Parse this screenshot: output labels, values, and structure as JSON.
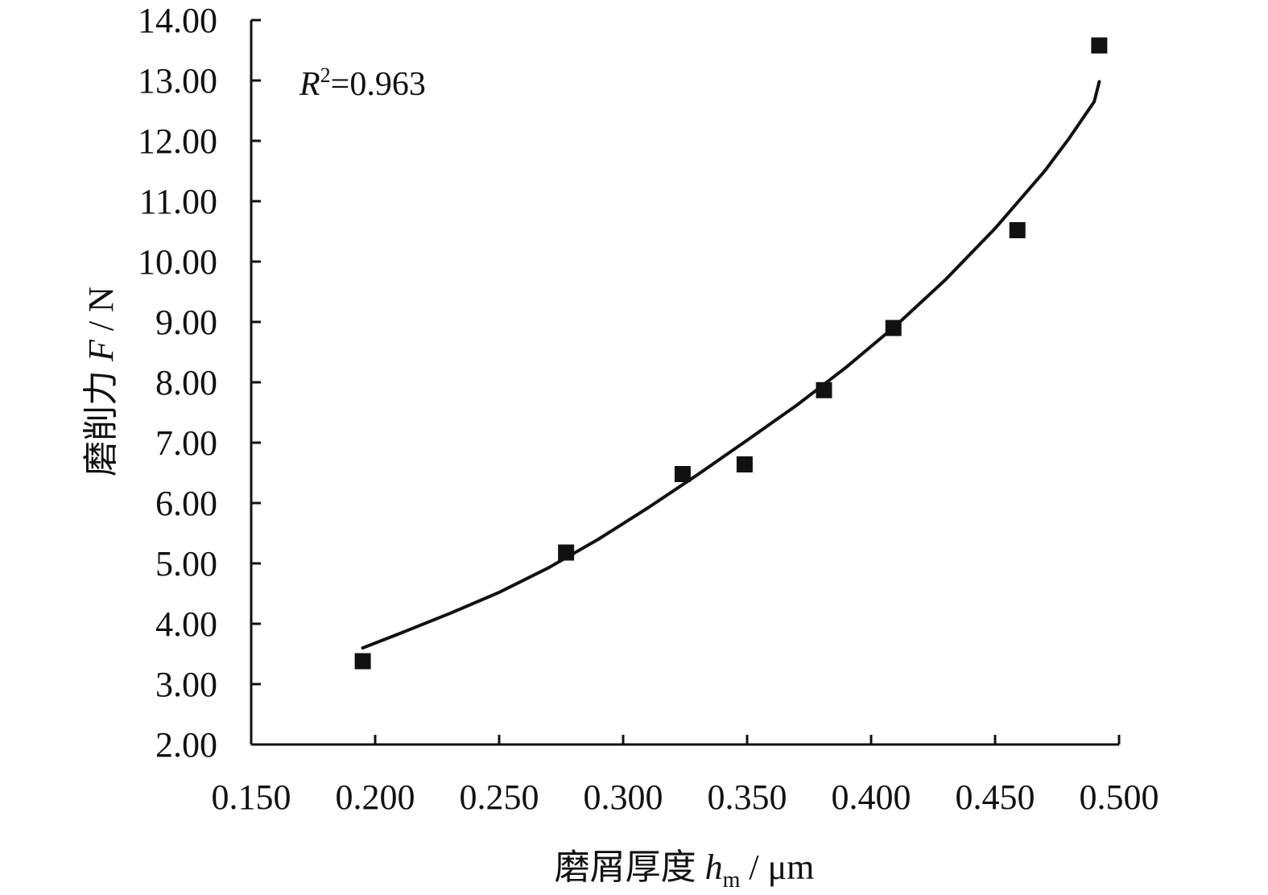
{
  "chart_data": {
    "type": "scatter",
    "xlabel_main": "磨屑厚度 ",
    "xlabel_var": "h",
    "xlabel_sub": "m",
    "xlabel_unit": " / μm",
    "ylabel_main": "磨削力 ",
    "ylabel_var": "F",
    "ylabel_unit": " / N",
    "annotation": {
      "var": "R",
      "sup": "2",
      "text": "=0.963"
    },
    "xlim": [
      0.15,
      0.5
    ],
    "ylim": [
      2.0,
      14.0
    ],
    "x_ticks": [
      0.15,
      0.2,
      0.25,
      0.3,
      0.35,
      0.4,
      0.45,
      0.5
    ],
    "x_tick_labels": [
      "0.150",
      "0.200",
      "0.250",
      "0.300",
      "0.350",
      "0.400",
      "0.450",
      "0.500"
    ],
    "y_ticks": [
      2,
      3,
      4,
      5,
      6,
      7,
      8,
      9,
      10,
      11,
      12,
      13,
      14
    ],
    "y_tick_labels": [
      "2.00",
      "3.00",
      "4.00",
      "5.00",
      "6.00",
      "7.00",
      "8.00",
      "9.00",
      "10.00",
      "11.00",
      "12.00",
      "13.00",
      "14.00"
    ],
    "points": [
      {
        "x": 0.195,
        "y": 3.38
      },
      {
        "x": 0.277,
        "y": 5.18
      },
      {
        "x": 0.324,
        "y": 6.48
      },
      {
        "x": 0.349,
        "y": 6.64
      },
      {
        "x": 0.381,
        "y": 7.87
      },
      {
        "x": 0.409,
        "y": 8.9
      },
      {
        "x": 0.459,
        "y": 10.52
      },
      {
        "x": 0.492,
        "y": 13.58
      }
    ],
    "fit_curve": [
      {
        "x": 0.195,
        "y": 3.6
      },
      {
        "x": 0.21,
        "y": 3.84
      },
      {
        "x": 0.23,
        "y": 4.17
      },
      {
        "x": 0.25,
        "y": 4.52
      },
      {
        "x": 0.27,
        "y": 4.93
      },
      {
        "x": 0.29,
        "y": 5.4
      },
      {
        "x": 0.31,
        "y": 5.92
      },
      {
        "x": 0.33,
        "y": 6.47
      },
      {
        "x": 0.35,
        "y": 7.04
      },
      {
        "x": 0.37,
        "y": 7.62
      },
      {
        "x": 0.39,
        "y": 8.25
      },
      {
        "x": 0.41,
        "y": 8.94
      },
      {
        "x": 0.43,
        "y": 9.7
      },
      {
        "x": 0.45,
        "y": 10.55
      },
      {
        "x": 0.47,
        "y": 11.5
      },
      {
        "x": 0.48,
        "y": 12.05
      },
      {
        "x": 0.49,
        "y": 12.65
      },
      {
        "x": 0.492,
        "y": 12.98
      }
    ],
    "colors": {
      "marker": "#111111",
      "line": "#111111",
      "axis": "#111111"
    }
  }
}
